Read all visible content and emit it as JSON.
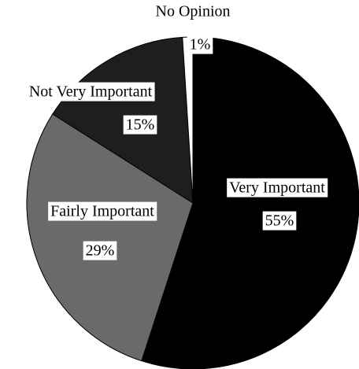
{
  "chart_data": {
    "type": "pie",
    "categories": [
      "Very Important",
      "Fairly Important",
      "Not Very Important",
      "No Opinion"
    ],
    "values": [
      55,
      29,
      15,
      1
    ],
    "value_labels": [
      "55%",
      "29%",
      "15%",
      "1%"
    ],
    "colors": [
      "#000000",
      "#6a6a6a",
      "#1e1e1e",
      "#ffffff"
    ]
  }
}
